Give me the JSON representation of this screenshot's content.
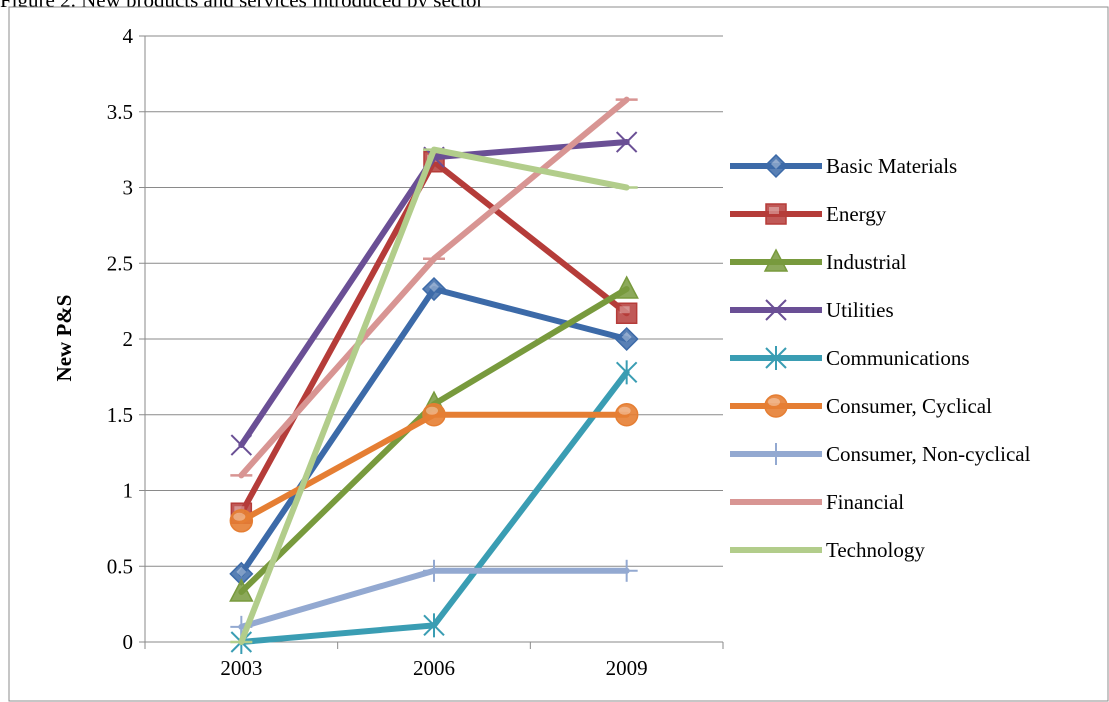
{
  "page": {
    "caption": "Figure 2. New products and services introduced by sector"
  },
  "chart_data": {
    "type": "line",
    "title": "",
    "xlabel": "",
    "ylabel": "New P&S",
    "categories": [
      "2003",
      "2006",
      "2009"
    ],
    "ylim": [
      0,
      4
    ],
    "yticks": [
      "0",
      "0.5",
      "1",
      "1.5",
      "2",
      "2.5",
      "3",
      "3.5",
      "4"
    ],
    "grid": "horizontal",
    "legend_position": "right",
    "series": [
      {
        "name": "Basic Materials",
        "values": [
          0.45,
          2.33,
          2.0
        ],
        "color": "#3c6aa8",
        "marker": "diamond"
      },
      {
        "name": "Energy",
        "values": [
          0.85,
          3.17,
          2.17
        ],
        "color": "#b53c39",
        "marker": "square"
      },
      {
        "name": "Industrial",
        "values": [
          0.33,
          1.57,
          2.33
        ],
        "color": "#789a3d",
        "marker": "triangle"
      },
      {
        "name": "Utilities",
        "values": [
          1.3,
          3.2,
          3.3
        ],
        "color": "#6a4f95",
        "marker": "x"
      },
      {
        "name": "Communications",
        "values": [
          0.0,
          0.11,
          1.78
        ],
        "color": "#3a9db3",
        "marker": "star"
      },
      {
        "name": "Consumer, Cyclical",
        "values": [
          0.8,
          1.5,
          1.5
        ],
        "color": "#e57e33",
        "marker": "circle"
      },
      {
        "name": "Consumer, Non-cyclical",
        "values": [
          0.1,
          0.47,
          0.47
        ],
        "color": "#93a9d1",
        "marker": "plus"
      },
      {
        "name": "Financial",
        "values": [
          1.1,
          2.53,
          3.58
        ],
        "color": "#d89593",
        "marker": "dash"
      },
      {
        "name": "Technology",
        "values": [
          0.0,
          3.25,
          3.0
        ],
        "color": "#b2cd8b",
        "marker": "dash"
      }
    ]
  }
}
